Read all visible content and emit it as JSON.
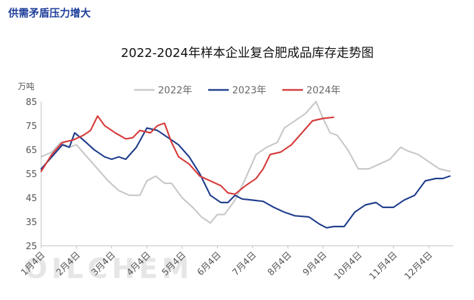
{
  "page": {
    "header": "供需矛盾压力增大"
  },
  "watermark": "OILCHEM",
  "chart_data": {
    "type": "line",
    "title": "2022-2024年样本企业复合肥成品库存走势图",
    "ylabel": "万吨",
    "xlabel": "",
    "ylim": [
      25,
      85
    ],
    "yticks": [
      25,
      35,
      45,
      55,
      65,
      75,
      85
    ],
    "categories": [
      "1月4日",
      "2月4日",
      "3月4日",
      "4月4日",
      "5月4日",
      "6月4日",
      "7月4日",
      "8月4日",
      "9月4日",
      "10月4日",
      "11月4日",
      "12月4日"
    ],
    "xlim": [
      1,
      12.7
    ],
    "grid": false,
    "legend_position": "top",
    "series": [
      {
        "name": "2022年",
        "color": "#c8c8c8",
        "points": [
          [
            1,
            62
          ],
          [
            1.3,
            64
          ],
          [
            1.55,
            68
          ],
          [
            1.8,
            66
          ],
          [
            2,
            67
          ],
          [
            2.3,
            62
          ],
          [
            2.6,
            57
          ],
          [
            2.9,
            52
          ],
          [
            3.2,
            48
          ],
          [
            3.5,
            46
          ],
          [
            3.8,
            46
          ],
          [
            4.0,
            52
          ],
          [
            4.25,
            54
          ],
          [
            4.5,
            51
          ],
          [
            4.7,
            51
          ],
          [
            5.0,
            45
          ],
          [
            5.3,
            41
          ],
          [
            5.55,
            37
          ],
          [
            5.8,
            34.5
          ],
          [
            6.0,
            38
          ],
          [
            6.2,
            38
          ],
          [
            6.5,
            44
          ],
          [
            6.8,
            53
          ],
          [
            7.1,
            63
          ],
          [
            7.4,
            66
          ],
          [
            7.7,
            68
          ],
          [
            7.9,
            74
          ],
          [
            8.2,
            77
          ],
          [
            8.5,
            80
          ],
          [
            8.8,
            85
          ],
          [
            9.0,
            78
          ],
          [
            9.2,
            72
          ],
          [
            9.4,
            71
          ],
          [
            9.7,
            65
          ],
          [
            10.0,
            57
          ],
          [
            10.3,
            57
          ],
          [
            10.6,
            59
          ],
          [
            10.9,
            61
          ],
          [
            11.2,
            66
          ],
          [
            11.4,
            64.5
          ],
          [
            11.7,
            63
          ],
          [
            12.0,
            60
          ],
          [
            12.3,
            57
          ],
          [
            12.6,
            56
          ]
        ]
      },
      {
        "name": "2023年",
        "color": "#1f3d8c",
        "points": [
          [
            1,
            57
          ],
          [
            1.3,
            62
          ],
          [
            1.6,
            67
          ],
          [
            1.8,
            66
          ],
          [
            1.95,
            72
          ],
          [
            2.2,
            69
          ],
          [
            2.5,
            65
          ],
          [
            2.8,
            62
          ],
          [
            3.0,
            61
          ],
          [
            3.2,
            62
          ],
          [
            3.4,
            61
          ],
          [
            3.7,
            66
          ],
          [
            4.0,
            74
          ],
          [
            4.3,
            73
          ],
          [
            4.6,
            70
          ],
          [
            4.9,
            67
          ],
          [
            5.2,
            62
          ],
          [
            5.5,
            55
          ],
          [
            5.8,
            46
          ],
          [
            6.1,
            43
          ],
          [
            6.3,
            43
          ],
          [
            6.5,
            46
          ],
          [
            6.7,
            44.5
          ],
          [
            7.0,
            44
          ],
          [
            7.3,
            43.5
          ],
          [
            7.6,
            41
          ],
          [
            7.9,
            39
          ],
          [
            8.2,
            37.5
          ],
          [
            8.6,
            37
          ],
          [
            8.9,
            34
          ],
          [
            9.1,
            32.5
          ],
          [
            9.3,
            33
          ],
          [
            9.6,
            33
          ],
          [
            9.9,
            39
          ],
          [
            10.2,
            42
          ],
          [
            10.5,
            43
          ],
          [
            10.7,
            41
          ],
          [
            11.0,
            41
          ],
          [
            11.3,
            44
          ],
          [
            11.6,
            46
          ],
          [
            11.9,
            52
          ],
          [
            12.2,
            53
          ],
          [
            12.4,
            53
          ],
          [
            12.6,
            54
          ]
        ]
      },
      {
        "name": "2024年",
        "color": "#d63a3a",
        "points": [
          [
            1,
            56
          ],
          [
            1.3,
            63
          ],
          [
            1.6,
            68
          ],
          [
            1.9,
            69
          ],
          [
            2.2,
            71
          ],
          [
            2.4,
            73
          ],
          [
            2.6,
            79
          ],
          [
            2.8,
            75
          ],
          [
            3.1,
            72
          ],
          [
            3.4,
            69.5
          ],
          [
            3.6,
            70
          ],
          [
            3.8,
            73
          ],
          [
            4.1,
            72
          ],
          [
            4.3,
            75
          ],
          [
            4.5,
            76
          ],
          [
            4.7,
            68
          ],
          [
            4.9,
            62
          ],
          [
            5.2,
            59
          ],
          [
            5.5,
            54
          ],
          [
            5.8,
            52
          ],
          [
            6.1,
            50
          ],
          [
            6.3,
            47
          ],
          [
            6.5,
            46.5
          ],
          [
            6.8,
            50
          ],
          [
            7.1,
            53
          ],
          [
            7.3,
            57
          ],
          [
            7.5,
            63
          ],
          [
            7.8,
            64
          ],
          [
            8.1,
            67
          ],
          [
            8.4,
            72
          ],
          [
            8.7,
            77
          ],
          [
            9.0,
            78
          ],
          [
            9.3,
            78.5
          ]
        ]
      }
    ]
  }
}
